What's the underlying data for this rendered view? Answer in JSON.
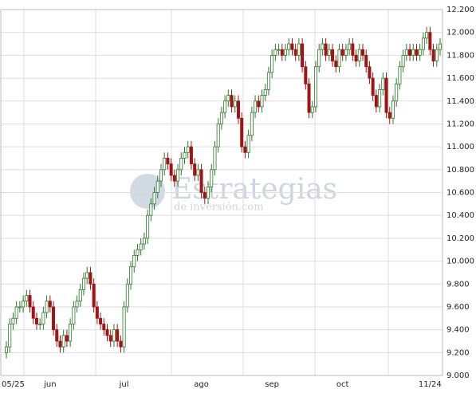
{
  "chart_data": {
    "type": "candlestick",
    "watermark": {
      "title": "Estrategias",
      "subtitle": "de inversión.com"
    },
    "categories": [
      null,
      null,
      "05/25",
      null,
      null,
      null,
      null,
      null,
      null,
      null,
      null,
      null,
      null,
      "jun",
      null,
      null,
      null,
      null,
      null,
      null,
      null,
      null,
      null,
      null,
      null,
      null,
      null,
      null,
      null,
      null,
      null,
      null,
      null,
      null,
      null,
      "jul",
      null,
      null,
      null,
      null,
      null,
      null,
      null,
      null,
      null,
      null,
      null,
      null,
      null,
      null,
      null,
      null,
      null,
      null,
      null,
      null,
      null,
      null,
      "ago",
      null,
      null,
      null,
      null,
      null,
      null,
      null,
      null,
      null,
      null,
      null,
      null,
      null,
      null,
      null,
      null,
      null,
      null,
      null,
      null,
      "sep",
      null,
      null,
      null,
      null,
      null,
      null,
      null,
      null,
      null,
      null,
      null,
      null,
      null,
      null,
      null,
      null,
      null,
      null,
      null,
      null,
      "oct",
      null,
      null,
      null,
      null,
      null,
      null,
      null,
      null,
      null,
      null,
      null,
      null,
      null,
      null,
      null,
      null,
      null,
      null,
      null,
      null,
      null,
      null,
      null,
      null,
      null,
      "11/24",
      null,
      null,
      null
    ],
    "open": [
      9200,
      9250,
      9450,
      9500,
      9600,
      9600,
      9650,
      9700,
      9600,
      9500,
      9450,
      9450,
      9550,
      9650,
      9600,
      9400,
      9300,
      9250,
      9350,
      9300,
      9450,
      9600,
      9650,
      9750,
      9850,
      9900,
      9800,
      9600,
      9500,
      9450,
      9400,
      9350,
      9300,
      9400,
      9300,
      9250,
      9600,
      9800,
      9950,
      10050,
      10100,
      10150,
      10200,
      10400,
      10500,
      10600,
      10700,
      10800,
      10900,
      10850,
      10750,
      10700,
      10800,
      10900,
      10950,
      11000,
      10850,
      10750,
      10800,
      10600,
      10550,
      10650,
      10800,
      11000,
      11200,
      11300,
      11400,
      11450,
      11350,
      11400,
      11250,
      11000,
      10950,
      11100,
      11300,
      11400,
      11350,
      11450,
      11500,
      11650,
      11800,
      11850,
      11850,
      11800,
      11850,
      11900,
      11850,
      11800,
      11900,
      11700,
      11550,
      11300,
      11350,
      11700,
      11850,
      11900,
      11800,
      11850,
      11750,
      11700,
      11850,
      11800,
      11850,
      11900,
      11800,
      11750,
      11850,
      11800,
      11700,
      11600,
      11450,
      11350,
      11500,
      11600,
      11300,
      11250,
      11400,
      11550,
      11700,
      11800,
      11850,
      11800,
      11850,
      11800,
      11850,
      11950,
      12000,
      11850,
      11750,
      11850
    ],
    "high": [
      9300,
      9500,
      9550,
      9650,
      9650,
      9700,
      9750,
      9750,
      9650,
      9550,
      9500,
      9600,
      9700,
      9700,
      9650,
      9450,
      9350,
      9400,
      9400,
      9500,
      9650,
      9700,
      9800,
      9900,
      9950,
      9950,
      9850,
      9650,
      9550,
      9500,
      9450,
      9400,
      9450,
      9450,
      9350,
      9650,
      9850,
      10000,
      10100,
      10150,
      10200,
      10250,
      10450,
      10550,
      10650,
      10750,
      10850,
      10950,
      10950,
      10900,
      10800,
      10850,
      10950,
      11000,
      11050,
      11050,
      10900,
      10850,
      10850,
      10650,
      10700,
      10850,
      11050,
      11250,
      11350,
      11450,
      11500,
      11500,
      11450,
      11450,
      11300,
      11050,
      11150,
      11350,
      11450,
      11450,
      11500,
      11550,
      11700,
      11850,
      11900,
      11900,
      11900,
      11900,
      11950,
      11950,
      11900,
      11950,
      11950,
      11750,
      11600,
      11400,
      11750,
      11900,
      11950,
      11950,
      11900,
      11900,
      11800,
      11900,
      11900,
      11900,
      11950,
      11950,
      11850,
      11900,
      11900,
      11850,
      11750,
      11650,
      11500,
      11550,
      11650,
      11650,
      11350,
      11450,
      11600,
      11750,
      11850,
      11900,
      11900,
      11900,
      11900,
      11900,
      12000,
      12050,
      12050,
      11900,
      11900,
      11950
    ],
    "low": [
      9150,
      9200,
      9400,
      9450,
      9550,
      9550,
      9600,
      9550,
      9450,
      9400,
      9400,
      9400,
      9500,
      9550,
      9350,
      9250,
      9200,
      9200,
      9250,
      9250,
      9400,
      9550,
      9600,
      9700,
      9800,
      9750,
      9550,
      9450,
      9400,
      9350,
      9300,
      9250,
      9250,
      9250,
      9200,
      9200,
      9550,
      9750,
      9900,
      10000,
      10050,
      10100,
      10150,
      10350,
      10450,
      10550,
      10650,
      10750,
      10800,
      10700,
      10650,
      10650,
      10750,
      10850,
      10900,
      10800,
      10700,
      10700,
      10550,
      10500,
      10500,
      10600,
      10750,
      10950,
      11150,
      11250,
      11350,
      11300,
      11300,
      11200,
      10950,
      10900,
      10900,
      11050,
      11250,
      11300,
      11300,
      11400,
      11450,
      11600,
      11750,
      11800,
      11750,
      11750,
      11800,
      11800,
      11750,
      11750,
      11650,
      11500,
      11250,
      11250,
      11300,
      11650,
      11800,
      11750,
      11750,
      11700,
      11650,
      11650,
      11750,
      11750,
      11800,
      11750,
      11700,
      11700,
      11750,
      11650,
      11550,
      11400,
      11300,
      11300,
      11450,
      11250,
      11200,
      11200,
      11350,
      11500,
      11650,
      11750,
      11750,
      11750,
      11750,
      11750,
      11800,
      11900,
      11800,
      11700,
      11700,
      11800
    ],
    "close": [
      9250,
      9450,
      9500,
      9600,
      9600,
      9650,
      9700,
      9600,
      9500,
      9450,
      9450,
      9550,
      9650,
      9600,
      9400,
      9300,
      9250,
      9350,
      9300,
      9450,
      9600,
      9650,
      9750,
      9850,
      9900,
      9800,
      9600,
      9500,
      9450,
      9400,
      9350,
      9300,
      9400,
      9300,
      9250,
      9600,
      9800,
      9950,
      10050,
      10100,
      10150,
      10200,
      10400,
      10500,
      10600,
      10700,
      10800,
      10900,
      10850,
      10750,
      10700,
      10800,
      10900,
      10950,
      11000,
      10850,
      10750,
      10800,
      10600,
      10550,
      10650,
      10800,
      11000,
      11200,
      11300,
      11400,
      11450,
      11350,
      11400,
      11250,
      11000,
      10950,
      11100,
      11300,
      11400,
      11350,
      11450,
      11500,
      11650,
      11800,
      11850,
      11850,
      11800,
      11850,
      11900,
      11850,
      11800,
      11900,
      11700,
      11550,
      11300,
      11350,
      11700,
      11850,
      11900,
      11800,
      11850,
      11750,
      11700,
      11850,
      11800,
      11850,
      11900,
      11800,
      11750,
      11850,
      11800,
      11700,
      11600,
      11450,
      11350,
      11500,
      11600,
      11300,
      11250,
      11400,
      11550,
      11700,
      11800,
      11850,
      11800,
      11850,
      11800,
      11850,
      11950,
      12000,
      11850,
      11750,
      11850,
      11900
    ],
    "up_color": "#2a7a2a",
    "down_color": "#a01414",
    "ylim": [
      9000,
      12200
    ],
    "yticks": [
      {
        "value": 9000,
        "label": "9.000"
      },
      {
        "value": 9200,
        "label": "9.200"
      },
      {
        "value": 9400,
        "label": "9.400"
      },
      {
        "value": 9600,
        "label": "9.600"
      },
      {
        "value": 9800,
        "label": "9.800"
      },
      {
        "value": 10000,
        "label": "10.000"
      },
      {
        "value": 10200,
        "label": "10.200"
      },
      {
        "value": 10400,
        "label": "10.400"
      },
      {
        "value": 10600,
        "label": "10.600"
      },
      {
        "value": 10800,
        "label": "10.800"
      },
      {
        "value": 11000,
        "label": "11.000"
      },
      {
        "value": 11200,
        "label": "11.200"
      },
      {
        "value": 11400,
        "label": "11.400"
      },
      {
        "value": 11600,
        "label": "11.600"
      },
      {
        "value": 11800,
        "label": "11.800"
      },
      {
        "value": 12000,
        "label": "12.000"
      },
      {
        "value": 12200,
        "label": "12.200"
      }
    ],
    "grid": true
  }
}
